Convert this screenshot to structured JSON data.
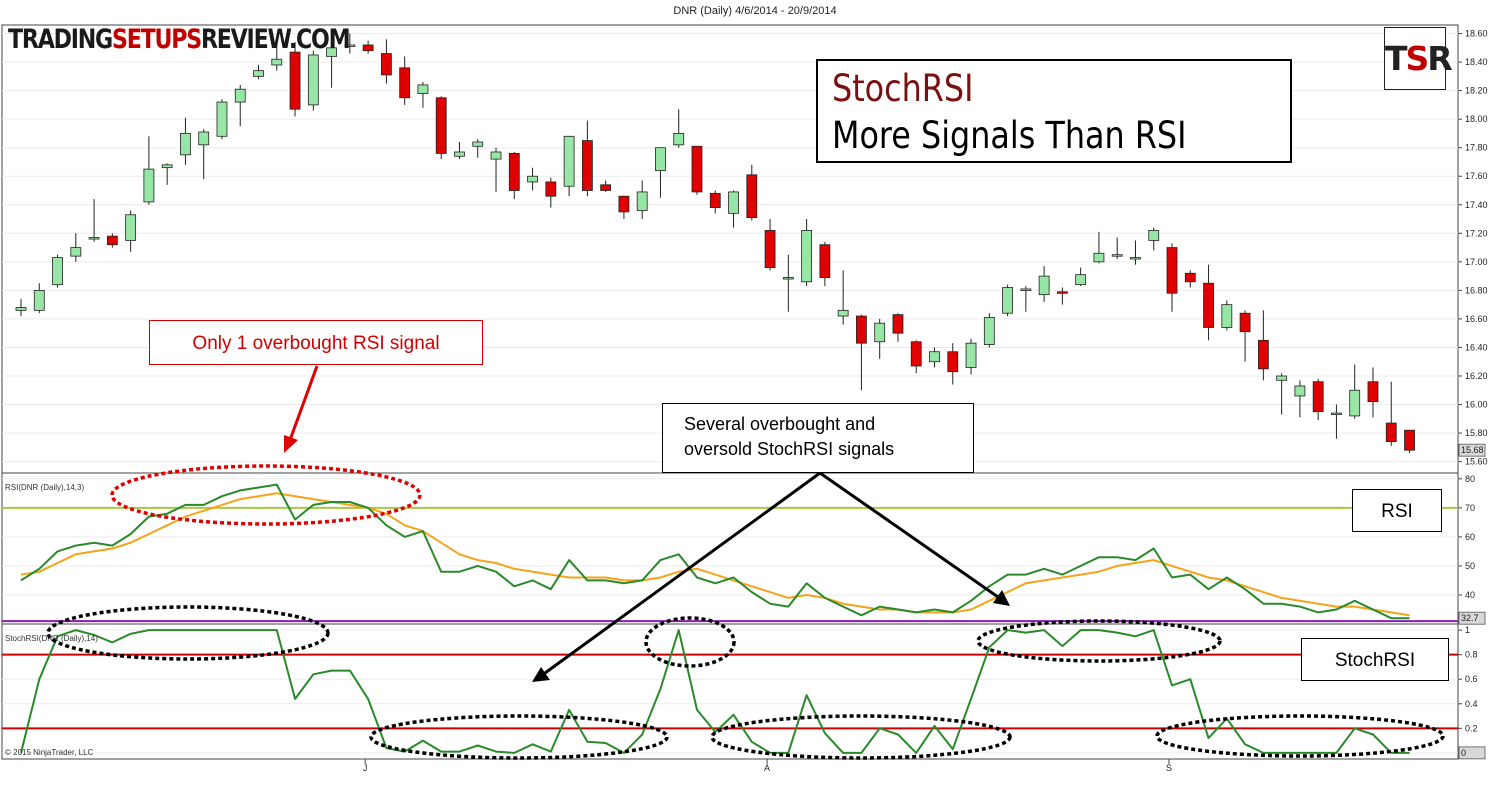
{
  "header": {
    "title": "DNR (Daily)  4/6/2014 - 20/9/2014",
    "brand_left": "TRADING",
    "brand_mid": "SETUPS",
    "brand_right": "REVIEW.COM",
    "logo_left": "T",
    "logo_mid": "S",
    "logo_right": "R",
    "copyright": "© 2015 NinjaTrader, LLC"
  },
  "headline": {
    "line1": "StochRSI",
    "line2": "More Signals Than RSI"
  },
  "annotations": {
    "rsi_callout": "Only 1 overbought RSI signal",
    "stoch_callout_line1": "Several overbought and",
    "stoch_callout_line2": "oversold StochRSI signals",
    "rsi_tag": "RSI",
    "stoch_tag": "StochRSI"
  },
  "colors": {
    "up_candle": "#98e6a6",
    "down_candle": "#e00000",
    "rsi_line": "#2a8a2a",
    "rsi_signal": "#f5a31a",
    "rsi_overbought": "#a8c840",
    "rsi_oversold": "#8a1ab8",
    "stoch_line": "#2a8a2a",
    "stoch_levels": "#cc0000",
    "annotation_red": "#d00000"
  },
  "chart_data": [
    {
      "type": "candlestick",
      "title": "DNR (Daily)  4/6/2014 - 20/9/2014",
      "ylim": [
        15.52,
        18.66
      ],
      "yticks": [
        "18.60",
        "18.40",
        "18.20",
        "18.00",
        "17.80",
        "17.60",
        "17.40",
        "17.20",
        "17.00",
        "16.80",
        "16.60",
        "16.40",
        "16.20",
        "16.00",
        "15.80",
        "15.60"
      ],
      "last_value_label": "15.68",
      "x_month_labels": [
        {
          "label": "J",
          "index": 19
        },
        {
          "label": "A",
          "index": 41
        },
        {
          "label": "S",
          "index": 63
        }
      ],
      "candles": [
        {
          "o": 16.66,
          "h": 16.74,
          "l": 16.62,
          "c": 16.68
        },
        {
          "o": 16.66,
          "h": 16.85,
          "l": 16.64,
          "c": 16.8
        },
        {
          "o": 16.84,
          "h": 17.05,
          "l": 16.82,
          "c": 17.03
        },
        {
          "o": 17.04,
          "h": 17.2,
          "l": 17.0,
          "c": 17.1
        },
        {
          "o": 17.16,
          "h": 17.44,
          "l": 17.14,
          "c": 17.17
        },
        {
          "o": 17.18,
          "h": 17.2,
          "l": 17.1,
          "c": 17.12
        },
        {
          "o": 17.15,
          "h": 17.36,
          "l": 17.07,
          "c": 17.33
        },
        {
          "o": 17.42,
          "h": 17.88,
          "l": 17.4,
          "c": 17.65
        },
        {
          "o": 17.66,
          "h": 17.69,
          "l": 17.54,
          "c": 17.68
        },
        {
          "o": 17.75,
          "h": 18.01,
          "l": 17.68,
          "c": 17.9
        },
        {
          "o": 17.82,
          "h": 17.93,
          "l": 17.58,
          "c": 17.91
        },
        {
          "o": 17.88,
          "h": 18.14,
          "l": 17.86,
          "c": 18.12
        },
        {
          "o": 18.12,
          "h": 18.24,
          "l": 17.95,
          "c": 18.21
        },
        {
          "o": 18.3,
          "h": 18.38,
          "l": 18.28,
          "c": 18.34
        },
        {
          "o": 18.38,
          "h": 18.57,
          "l": 18.34,
          "c": 18.42
        },
        {
          "o": 18.47,
          "h": 18.54,
          "l": 18.02,
          "c": 18.07
        },
        {
          "o": 18.1,
          "h": 18.48,
          "l": 18.06,
          "c": 18.45
        },
        {
          "o": 18.44,
          "h": 18.52,
          "l": 18.22,
          "c": 18.5
        },
        {
          "o": 18.52,
          "h": 18.6,
          "l": 18.46,
          "c": 18.52
        },
        {
          "o": 18.52,
          "h": 18.55,
          "l": 18.46,
          "c": 18.48
        },
        {
          "o": 18.46,
          "h": 18.56,
          "l": 18.25,
          "c": 18.31
        },
        {
          "o": 18.36,
          "h": 18.44,
          "l": 18.1,
          "c": 18.15
        },
        {
          "o": 18.18,
          "h": 18.26,
          "l": 18.08,
          "c": 18.24
        },
        {
          "o": 18.15,
          "h": 18.16,
          "l": 17.72,
          "c": 17.76
        },
        {
          "o": 17.74,
          "h": 17.84,
          "l": 17.72,
          "c": 17.77
        },
        {
          "o": 17.81,
          "h": 17.86,
          "l": 17.73,
          "c": 17.84
        },
        {
          "o": 17.72,
          "h": 17.8,
          "l": 17.49,
          "c": 17.77
        },
        {
          "o": 17.76,
          "h": 17.77,
          "l": 17.44,
          "c": 17.5
        },
        {
          "o": 17.56,
          "h": 17.66,
          "l": 17.5,
          "c": 17.6
        },
        {
          "o": 17.56,
          "h": 17.59,
          "l": 17.38,
          "c": 17.46
        },
        {
          "o": 17.53,
          "h": 17.88,
          "l": 17.46,
          "c": 17.88
        },
        {
          "o": 17.85,
          "h": 17.99,
          "l": 17.46,
          "c": 17.5
        },
        {
          "o": 17.54,
          "h": 17.57,
          "l": 17.49,
          "c": 17.5
        },
        {
          "o": 17.46,
          "h": 17.46,
          "l": 17.3,
          "c": 17.35
        },
        {
          "o": 17.36,
          "h": 17.57,
          "l": 17.3,
          "c": 17.49
        },
        {
          "o": 17.64,
          "h": 17.78,
          "l": 17.45,
          "c": 17.8
        },
        {
          "o": 17.82,
          "h": 18.07,
          "l": 17.8,
          "c": 17.9
        },
        {
          "o": 17.81,
          "h": 17.81,
          "l": 17.47,
          "c": 17.49
        },
        {
          "o": 17.48,
          "h": 17.5,
          "l": 17.34,
          "c": 17.38
        },
        {
          "o": 17.34,
          "h": 17.5,
          "l": 17.24,
          "c": 17.49
        },
        {
          "o": 17.61,
          "h": 17.68,
          "l": 17.29,
          "c": 17.31
        },
        {
          "o": 17.22,
          "h": 17.3,
          "l": 16.94,
          "c": 16.96
        },
        {
          "o": 16.89,
          "h": 17.05,
          "l": 16.65,
          "c": 16.89
        },
        {
          "o": 16.86,
          "h": 17.3,
          "l": 16.83,
          "c": 17.22
        },
        {
          "o": 17.12,
          "h": 17.14,
          "l": 16.83,
          "c": 16.89
        },
        {
          "o": 16.62,
          "h": 16.94,
          "l": 16.56,
          "c": 16.66
        },
        {
          "o": 16.62,
          "h": 16.63,
          "l": 16.1,
          "c": 16.43
        },
        {
          "o": 16.44,
          "h": 16.6,
          "l": 16.32,
          "c": 16.57
        },
        {
          "o": 16.63,
          "h": 16.64,
          "l": 16.44,
          "c": 16.5
        },
        {
          "o": 16.44,
          "h": 16.45,
          "l": 16.22,
          "c": 16.27
        },
        {
          "o": 16.3,
          "h": 16.4,
          "l": 16.26,
          "c": 16.37
        },
        {
          "o": 16.37,
          "h": 16.43,
          "l": 16.14,
          "c": 16.23
        },
        {
          "o": 16.26,
          "h": 16.46,
          "l": 16.21,
          "c": 16.43
        },
        {
          "o": 16.42,
          "h": 16.64,
          "l": 16.4,
          "c": 16.61
        },
        {
          "o": 16.64,
          "h": 16.84,
          "l": 16.62,
          "c": 16.82
        },
        {
          "o": 16.81,
          "h": 16.83,
          "l": 16.65,
          "c": 16.81
        },
        {
          "o": 16.77,
          "h": 16.97,
          "l": 16.72,
          "c": 16.9
        },
        {
          "o": 16.79,
          "h": 16.82,
          "l": 16.7,
          "c": 16.78
        },
        {
          "o": 16.84,
          "h": 16.96,
          "l": 16.83,
          "c": 16.91
        },
        {
          "o": 17.0,
          "h": 17.21,
          "l": 16.99,
          "c": 17.06
        },
        {
          "o": 17.05,
          "h": 17.17,
          "l": 17.02,
          "c": 17.05
        },
        {
          "o": 17.03,
          "h": 17.15,
          "l": 16.98,
          "c": 17.03
        },
        {
          "o": 17.15,
          "h": 17.24,
          "l": 17.08,
          "c": 17.22
        },
        {
          "o": 17.1,
          "h": 17.13,
          "l": 16.65,
          "c": 16.78
        },
        {
          "o": 16.92,
          "h": 16.94,
          "l": 16.82,
          "c": 16.86
        },
        {
          "o": 16.85,
          "h": 16.98,
          "l": 16.45,
          "c": 16.54
        },
        {
          "o": 16.54,
          "h": 16.73,
          "l": 16.52,
          "c": 16.7
        },
        {
          "o": 16.64,
          "h": 16.66,
          "l": 16.3,
          "c": 16.51
        },
        {
          "o": 16.45,
          "h": 16.66,
          "l": 16.17,
          "c": 16.25
        },
        {
          "o": 16.17,
          "h": 16.22,
          "l": 15.93,
          "c": 16.2
        },
        {
          "o": 16.06,
          "h": 16.17,
          "l": 15.91,
          "c": 16.13
        },
        {
          "o": 16.16,
          "h": 16.18,
          "l": 15.89,
          "c": 15.95
        },
        {
          "o": 15.93,
          "h": 16.0,
          "l": 15.76,
          "c": 15.94
        },
        {
          "o": 15.92,
          "h": 16.28,
          "l": 15.9,
          "c": 16.1
        },
        {
          "o": 16.16,
          "h": 16.26,
          "l": 15.91,
          "c": 16.02
        },
        {
          "o": 15.87,
          "h": 16.16,
          "l": 15.71,
          "c": 15.74
        },
        {
          "o": 15.82,
          "h": 15.82,
          "l": 15.66,
          "c": 15.68
        }
      ]
    },
    {
      "type": "line",
      "label": "RSI(DNR (Daily),14,3)",
      "ylim": [
        30,
        82
      ],
      "yticks": [
        "80",
        "70",
        "60",
        "50",
        "40"
      ],
      "last_value_label": "32.7",
      "levels": [
        70,
        31
      ],
      "series": [
        {
          "values": [
            45,
            49,
            55,
            57,
            58,
            57,
            61,
            67,
            68,
            71,
            71,
            74,
            76,
            77,
            78,
            66,
            71,
            72,
            72,
            70,
            64,
            60,
            62,
            48,
            48,
            50,
            48,
            43,
            45,
            42,
            52,
            45,
            45,
            44,
            45,
            52,
            54,
            46,
            44,
            46,
            41,
            37,
            36,
            44,
            39,
            36,
            33,
            36,
            35,
            34,
            35,
            34,
            38,
            43,
            47,
            47,
            49,
            47,
            50,
            53,
            53,
            52,
            56,
            46,
            47,
            42,
            46,
            42,
            37,
            37,
            36,
            34,
            35,
            38,
            35,
            32,
            32
          ]
        },
        {
          "values": [
            47,
            48,
            51,
            54,
            55,
            56,
            58,
            61,
            64,
            67,
            69,
            71,
            73,
            74,
            75,
            74,
            73,
            72,
            71,
            70,
            68,
            64,
            62,
            58,
            54,
            52,
            51,
            49,
            48,
            47,
            46,
            46,
            46,
            45,
            45,
            46,
            48,
            49,
            47,
            45,
            43,
            41,
            39,
            40,
            39,
            37,
            36,
            35,
            35,
            34,
            34,
            34,
            35,
            38,
            41,
            44,
            45,
            46,
            47,
            48,
            50,
            51,
            52,
            50,
            48,
            46,
            45,
            43,
            41,
            39,
            38,
            37,
            36,
            36,
            35,
            34,
            33
          ]
        }
      ]
    },
    {
      "type": "line",
      "label": "StochRSI(DNR (Daily),14)",
      "ylim": [
        -0.05,
        1.05
      ],
      "yticks": [
        "1",
        "0.8",
        "0.6",
        "0.4",
        "0.2",
        "0"
      ],
      "last_value_label": "0",
      "levels": [
        0.8,
        0.2
      ],
      "series": [
        {
          "values": [
            0.0,
            0.6,
            0.95,
            1.0,
            0.96,
            0.9,
            0.97,
            1.0,
            1.0,
            1.0,
            1.0,
            1.0,
            1.0,
            1.0,
            1.0,
            0.44,
            0.64,
            0.67,
            0.67,
            0.44,
            0.04,
            0.01,
            0.1,
            0.01,
            0.01,
            0.06,
            0.01,
            0.0,
            0.07,
            0.01,
            0.35,
            0.09,
            0.08,
            0.0,
            0.15,
            0.52,
            1.0,
            0.35,
            0.17,
            0.31,
            0.09,
            0.0,
            0.0,
            0.47,
            0.16,
            0.0,
            0.0,
            0.2,
            0.15,
            0.0,
            0.22,
            0.03,
            0.44,
            0.86,
            1.0,
            0.98,
            1.0,
            0.87,
            1.0,
            1.0,
            0.98,
            0.95,
            1.0,
            0.55,
            0.6,
            0.12,
            0.28,
            0.07,
            0.0,
            0.0,
            0.0,
            0.0,
            0.0,
            0.2,
            0.15,
            0.0,
            0.0
          ]
        }
      ]
    }
  ]
}
